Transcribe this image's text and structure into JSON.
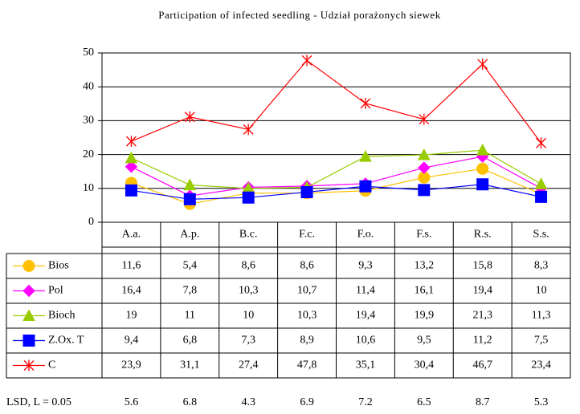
{
  "chart_data": {
    "type": "line",
    "title": "Participation of  infected seedling - Udział porażonych siewek",
    "categories": [
      "A.a.",
      "A.p.",
      "B.c.",
      "F.c.",
      "F.o.",
      "F.s.",
      "R.s.",
      "S.s."
    ],
    "ylim": [
      0,
      50
    ],
    "yticks": [
      0,
      10,
      20,
      30,
      40,
      50
    ],
    "grid": true,
    "series": [
      {
        "name": "Bios",
        "color": "#FFC000",
        "marker": "circle",
        "values": [
          11.6,
          5.4,
          8.6,
          8.6,
          9.3,
          13.2,
          15.8,
          8.3
        ],
        "value_labels": [
          "11,6",
          "5,4",
          "8,6",
          "8,6",
          "9,3",
          "13,2",
          "15,8",
          "8,3"
        ]
      },
      {
        "name": "Pol",
        "color": "#FF00FF",
        "marker": "diamond",
        "values": [
          16.4,
          7.8,
          10.3,
          10.7,
          11.4,
          16.1,
          19.4,
          10
        ],
        "value_labels": [
          "16,4",
          "7,8",
          "10,3",
          "10,7",
          "11,4",
          "16,1",
          "19,4",
          "10"
        ]
      },
      {
        "name": "Bioch",
        "color": "#99CC00",
        "marker": "triangle",
        "values": [
          19,
          11,
          10,
          10.3,
          19.4,
          19.9,
          21.3,
          11.3
        ],
        "value_labels": [
          "19",
          "11",
          "10",
          "10,3",
          "19,4",
          "19,9",
          "21,3",
          "11,3"
        ]
      },
      {
        "name": "Z.Ox. T",
        "color": "#0000FF",
        "marker": "square",
        "values": [
          9.4,
          6.8,
          7.3,
          8.9,
          10.6,
          9.5,
          11.2,
          7.5
        ],
        "value_labels": [
          "9,4",
          "6,8",
          "7,3",
          "8,9",
          "10,6",
          "9,5",
          "11,2",
          "7,5"
        ]
      },
      {
        "name": "C",
        "color": "#FF0000",
        "marker": "star",
        "values": [
          23.9,
          31.1,
          27.4,
          47.8,
          35.1,
          30.4,
          46.7,
          23.4
        ],
        "value_labels": [
          "23,9",
          "31,1",
          "27,4",
          "47,8",
          "35,1",
          "30,4",
          "46,7",
          "23,4"
        ]
      }
    ],
    "lsd": {
      "label": "LSD, L = 0.05",
      "values": [
        5.6,
        6.8,
        4.3,
        6.9,
        7.2,
        6.5,
        8.7,
        5.3
      ]
    }
  }
}
